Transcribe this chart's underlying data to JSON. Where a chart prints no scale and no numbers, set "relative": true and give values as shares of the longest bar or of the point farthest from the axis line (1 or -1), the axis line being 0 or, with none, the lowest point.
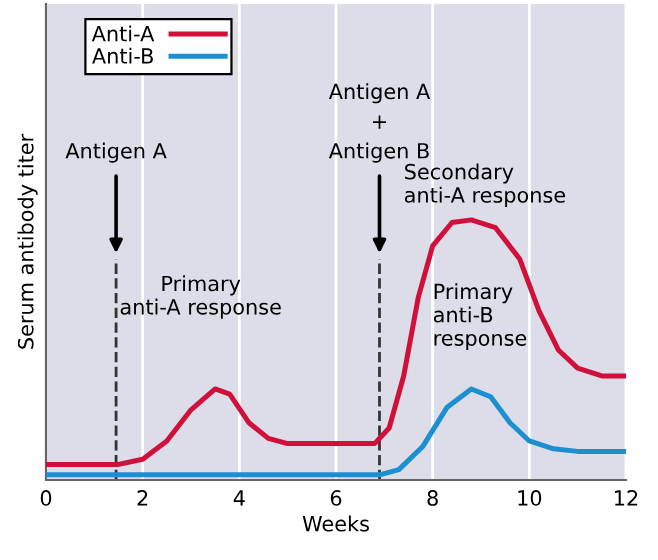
{
  "chart_data": {
    "type": "line",
    "relative": true,
    "xlabel": "Weeks",
    "ylabel": "Serum antibody titer",
    "xlim": [
      0,
      12
    ],
    "xticks": [
      0,
      2,
      4,
      6,
      8,
      10,
      12
    ],
    "tick_labels": "x",
    "grid": "x",
    "legend": "top left",
    "line_style": "solid",
    "marker": "none",
    "series": [
      {
        "name": "Anti-A",
        "color": "#d0103a",
        "x": [
          0,
          1.5,
          2.0,
          2.5,
          3.0,
          3.5,
          3.8,
          4.2,
          4.6,
          5.0,
          6.0,
          6.8,
          7.1,
          7.4,
          7.7,
          8.0,
          8.4,
          8.8,
          9.3,
          9.8,
          10.2,
          10.6,
          11.0,
          11.5,
          12
        ],
        "values": [
          0.06,
          0.06,
          0.08,
          0.15,
          0.27,
          0.35,
          0.33,
          0.22,
          0.16,
          0.14,
          0.14,
          0.14,
          0.2,
          0.4,
          0.7,
          0.9,
          0.99,
          1.0,
          0.97,
          0.85,
          0.65,
          0.5,
          0.43,
          0.4,
          0.4
        ]
      },
      {
        "name": "Anti-B",
        "color": "#1b8fd0",
        "x": [
          0,
          6.9,
          7.3,
          7.8,
          8.3,
          8.8,
          9.2,
          9.6,
          10.0,
          10.5,
          11,
          12
        ],
        "values": [
          0.02,
          0.02,
          0.04,
          0.13,
          0.28,
          0.35,
          0.32,
          0.22,
          0.15,
          0.12,
          0.11,
          0.11
        ]
      }
    ],
    "ref_lines": [
      {
        "axis": "x",
        "value": 1.45,
        "label": "Antigen A",
        "line_style": "dashed",
        "color": "#333333"
      },
      {
        "axis": "x",
        "value": 6.9,
        "label": "Antigen A\n+\nAntigen B",
        "line_style": "dashed",
        "color": "#333333"
      }
    ],
    "annotations": [
      "Primary\nanti-A response",
      "Secondary\nanti-A response",
      "Primary\nanti-B\nresponse"
    ]
  }
}
